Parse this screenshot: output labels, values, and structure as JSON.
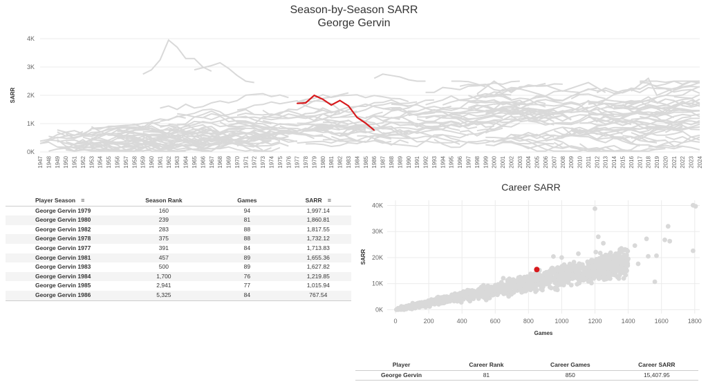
{
  "top_chart": {
    "title": "Season-by-Season SARR",
    "subtitle": "George Gervin"
  },
  "season_table": {
    "headers": [
      "Player Season",
      "Season Rank",
      "Games",
      "SARR"
    ],
    "rows": [
      [
        "George Gervin 1979",
        "160",
        "94",
        "1,997.14"
      ],
      [
        "George Gervin 1980",
        "239",
        "81",
        "1,860.81"
      ],
      [
        "George Gervin 1982",
        "283",
        "88",
        "1,817.55"
      ],
      [
        "George Gervin 1978",
        "375",
        "88",
        "1,732.12"
      ],
      [
        "George Gervin 1977",
        "391",
        "84",
        "1,713.83"
      ],
      [
        "George Gervin 1981",
        "457",
        "89",
        "1,655.36"
      ],
      [
        "George Gervin 1983",
        "500",
        "89",
        "1,627.82"
      ],
      [
        "George Gervin 1984",
        "1,700",
        "76",
        "1,219.85"
      ],
      [
        "George Gervin 1985",
        "2,941",
        "77",
        "1,015.94"
      ],
      [
        "George Gervin 1986",
        "5,325",
        "84",
        "767.54"
      ]
    ]
  },
  "career_chart": {
    "title": "Career SARR"
  },
  "career_table": {
    "headers": [
      "Player",
      "Career Rank",
      "Career Games",
      "Career SARR"
    ],
    "rows": [
      [
        "George Gervin",
        "81",
        "850",
        "15,407.95"
      ]
    ]
  },
  "colors": {
    "highlight": "#d7191c",
    "background_series": "#d9d9d9",
    "grid": "#ebebeb"
  },
  "chart_data": [
    {
      "type": "line",
      "title": "Season-by-Season SARR",
      "subtitle": "George Gervin",
      "ylabel": "SARR",
      "xlabel": "",
      "ylim": [
        0,
        4000
      ],
      "yticks": [
        "0K",
        "1K",
        "2K",
        "3K",
        "4K"
      ],
      "x_range": [
        1947,
        2024
      ],
      "series": [
        {
          "name": "George Gervin",
          "x": [
            1977,
            1978,
            1979,
            1980,
            1981,
            1982,
            1983,
            1984,
            1985,
            1986
          ],
          "values": [
            1713.83,
            1732.12,
            1997.14,
            1860.81,
            1655.36,
            1817.55,
            1627.82,
            1219.85,
            1015.94,
            767.54
          ]
        }
      ],
      "grid": true
    },
    {
      "type": "scatter",
      "title": "Career SARR",
      "xlabel": "Games",
      "ylabel": "SARR",
      "xlim": [
        -50,
        1830
      ],
      "ylim": [
        -1500,
        42000
      ],
      "xticks": [
        0,
        200,
        400,
        600,
        800,
        1000,
        1200,
        1400,
        1600,
        1800
      ],
      "yticks": [
        "0K",
        "10K",
        "20K",
        "30K",
        "40K"
      ],
      "highlight": {
        "x": 850,
        "y": 15407.95
      },
      "grid": true
    }
  ]
}
